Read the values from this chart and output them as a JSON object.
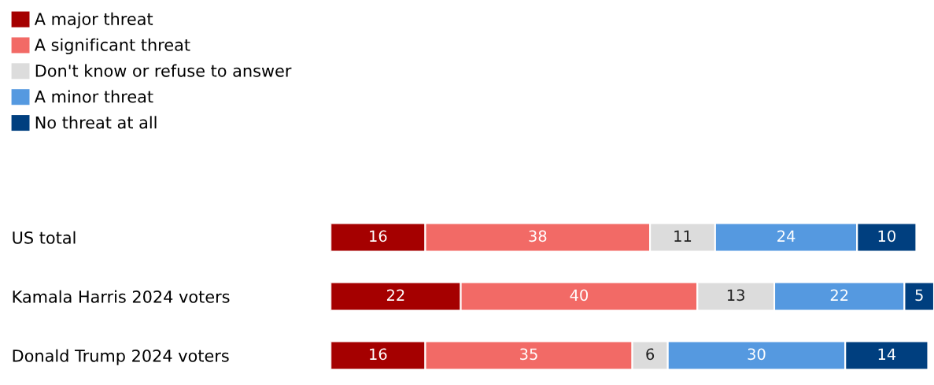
{
  "chart_data": {
    "type": "bar",
    "orientation": "horizontal",
    "stacked": true,
    "data_labels": true,
    "legend": "top left",
    "grid": false,
    "tick_labels": "y",
    "categories": [
      "US total",
      "Kamala Harris 2024 voters",
      "Donald Trump 2024 voters"
    ],
    "series": [
      {
        "name": "A major threat",
        "color": "#a50000",
        "values": [
          16,
          22,
          16
        ]
      },
      {
        "name": "A significant threat",
        "color": "#f26a66",
        "values": [
          38,
          40,
          35
        ]
      },
      {
        "name": "Don't know or refuse to answer",
        "color": "#dcdcdc",
        "values": [
          11,
          13,
          6
        ]
      },
      {
        "name": "A minor threat",
        "color": "#5599e0",
        "values": [
          24,
          22,
          30
        ]
      },
      {
        "name": "No threat at all",
        "color": "#003f7f",
        "values": [
          10,
          5,
          14
        ]
      }
    ]
  }
}
